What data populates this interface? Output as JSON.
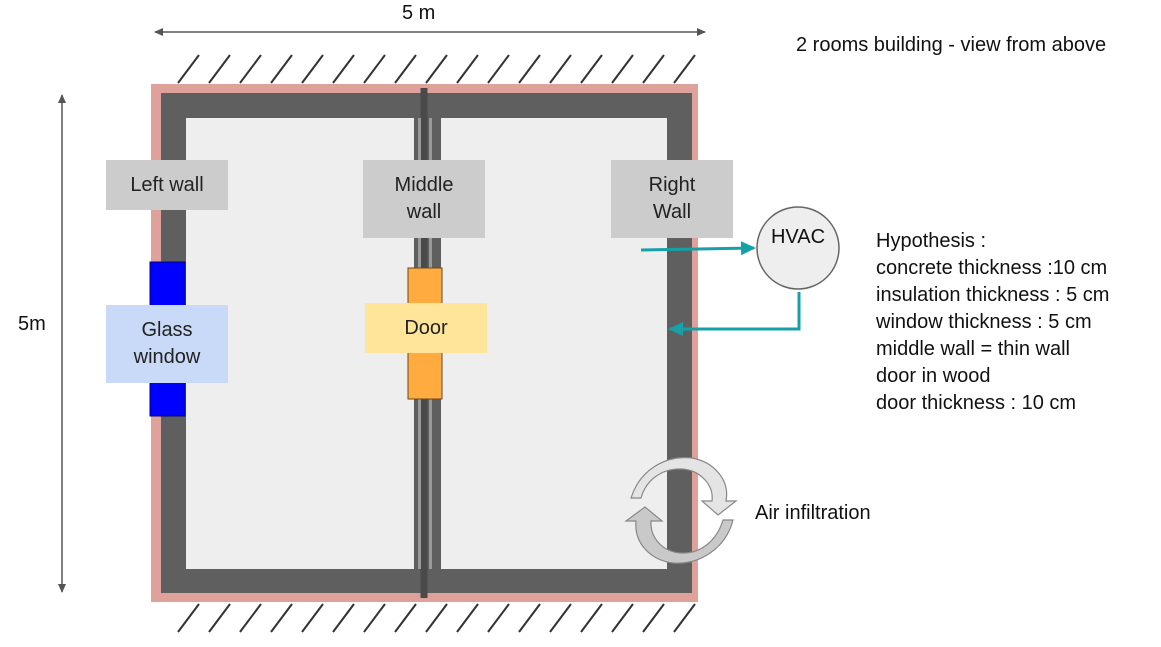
{
  "title": "2 rooms building - view from above",
  "dimensions": {
    "width": "5 m",
    "height": "5m"
  },
  "labels": {
    "left_wall": [
      "Left wall"
    ],
    "middle_wall": [
      "Middle",
      "wall"
    ],
    "right_wall": [
      "Right",
      "Wall"
    ],
    "glass_window": [
      "Glass",
      "window"
    ],
    "door": [
      "Door"
    ],
    "hvac": "HVAC",
    "air_infiltration": "Air infiltration"
  },
  "hypothesis": {
    "heading": "Hypothesis :",
    "items": [
      "concrete thickness :10 cm",
      "insulation thickness :  5 cm",
      "window thickness : 5 cm",
      "middle wall = thin wall",
      "door in wood",
      "door thickness : 10 cm"
    ]
  },
  "colors": {
    "insulation": "#dea29a",
    "concrete": "#5f5f5f",
    "floor": "#eeeeee",
    "window": "#0000ff",
    "door": "#ffab40",
    "label_box": "#cccccc",
    "window_label_box": "#c9daf8",
    "door_label_box": "#ffe599",
    "hvac_fill": "#eeeeee",
    "arrow": "#16a0a8"
  },
  "icons": {
    "ground_hatching": "ground-hatching-icon",
    "air_infiltration": "circular-arrows-icon"
  }
}
